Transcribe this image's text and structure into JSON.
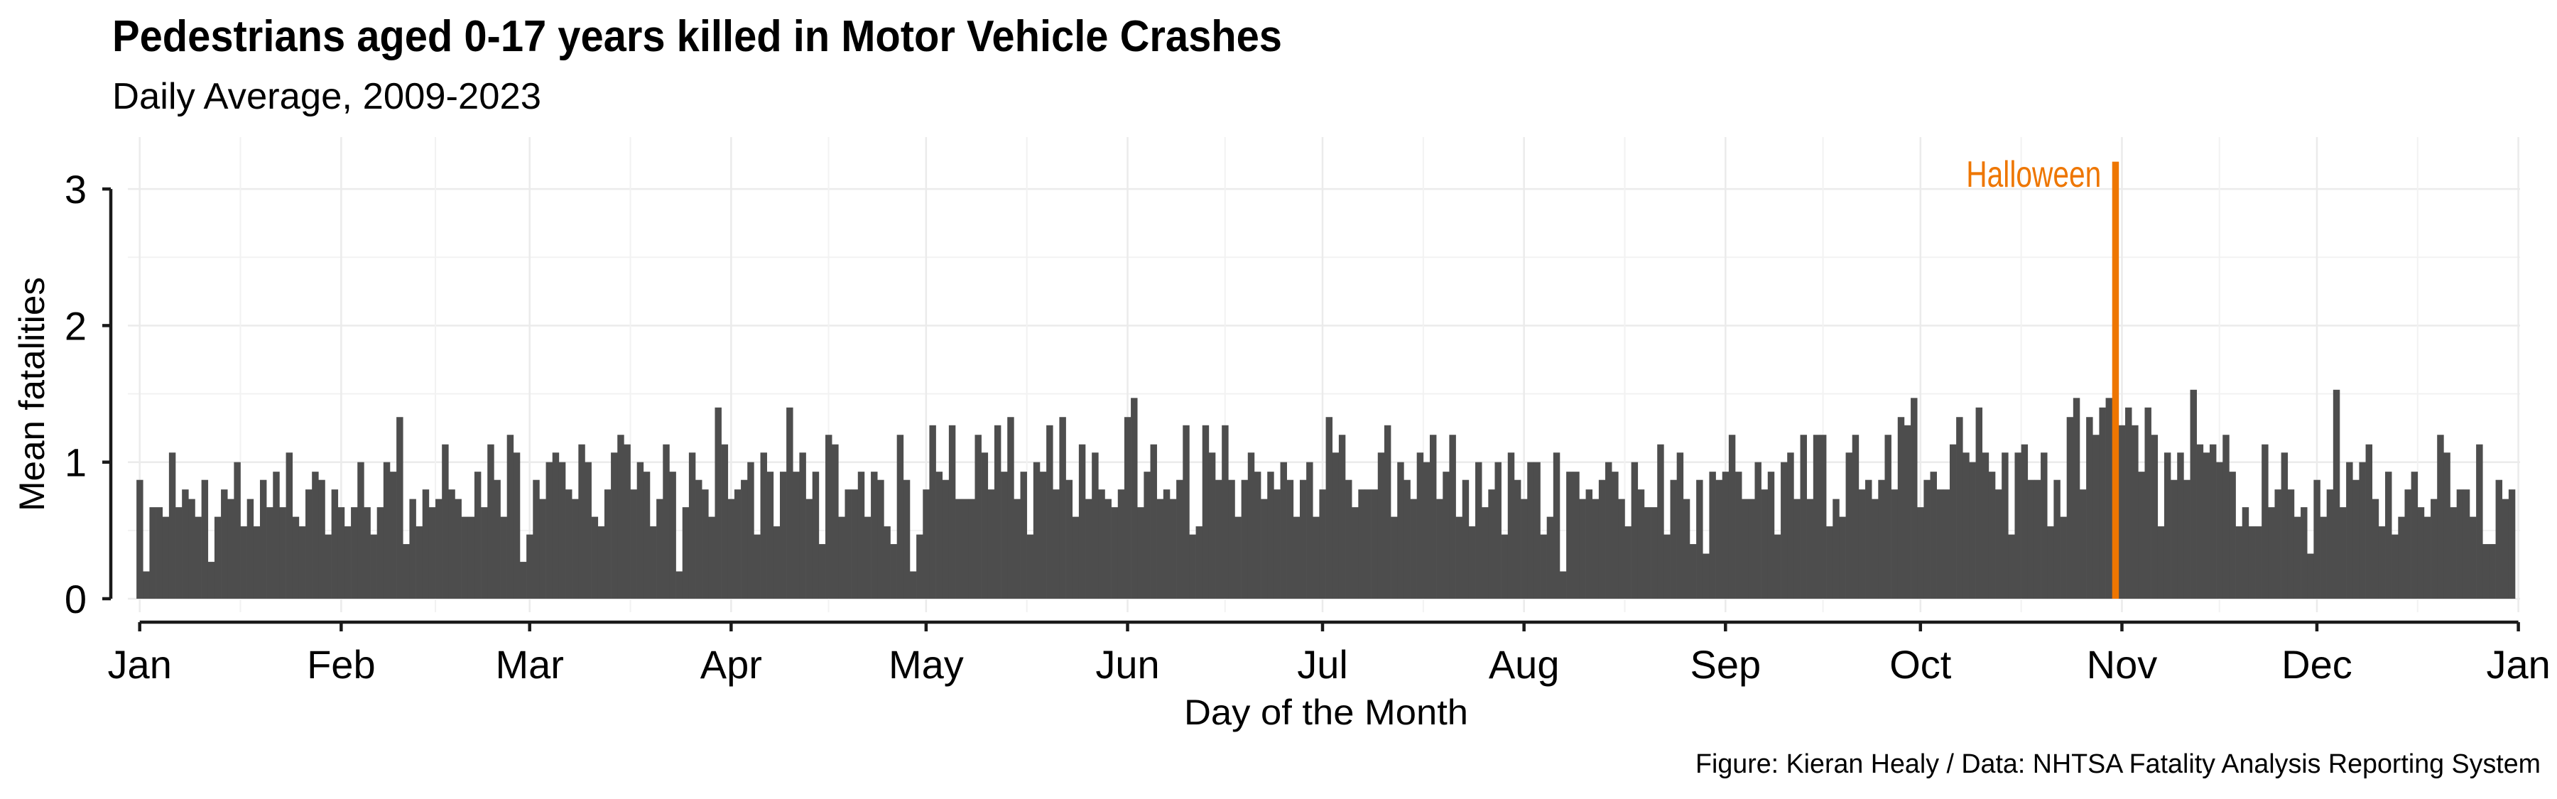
{
  "chart_data": {
    "type": "bar",
    "title": "Pedestrians aged 0-17 years killed in Motor Vehicle Crashes",
    "subtitle": "Daily Average, 2009-2023",
    "xlabel": "Day of the Month",
    "ylabel": "Mean fatalities",
    "caption": "Figure: Kieran Healy / Data: NHTSA Fatality Analysis Reporting System",
    "ylim": [
      0,
      3.2
    ],
    "xlim_days": [
      1,
      367
    ],
    "grid": true,
    "bar_color": "#4d4d4d",
    "y_ticks": [
      {
        "value": 0,
        "label": "0"
      },
      {
        "value": 1,
        "label": "1"
      },
      {
        "value": 2,
        "label": "2"
      },
      {
        "value": 3,
        "label": "3"
      }
    ],
    "x_ticks": [
      {
        "day": 1,
        "label": "Jan"
      },
      {
        "day": 32,
        "label": "Feb"
      },
      {
        "day": 61,
        "label": "Mar"
      },
      {
        "day": 92,
        "label": "Apr"
      },
      {
        "day": 122,
        "label": "May"
      },
      {
        "day": 153,
        "label": "Jun"
      },
      {
        "day": 183,
        "label": "Jul"
      },
      {
        "day": 214,
        "label": "Aug"
      },
      {
        "day": 245,
        "label": "Sep"
      },
      {
        "day": 275,
        "label": "Oct"
      },
      {
        "day": 306,
        "label": "Nov"
      },
      {
        "day": 336,
        "label": "Dec"
      },
      {
        "day": 367,
        "label": "Jan"
      }
    ],
    "highlight": {
      "day": 305,
      "label": "Halloween",
      "color": "#ee7600"
    },
    "values": [
      0.87,
      0.2,
      0.67,
      0.67,
      0.6,
      1.07,
      0.67,
      0.8,
      0.73,
      0.6,
      0.87,
      0.27,
      0.6,
      0.8,
      0.73,
      1,
      0.53,
      0.73,
      0.53,
      0.87,
      0.67,
      0.93,
      0.67,
      1.07,
      0.6,
      0.53,
      0.8,
      0.93,
      0.87,
      0.47,
      0.8,
      0.67,
      0.53,
      0.67,
      1,
      0.67,
      0.47,
      0.67,
      1,
      0.93,
      1.33,
      0.4,
      0.73,
      0.53,
      0.8,
      0.67,
      0.73,
      1.13,
      0.8,
      0.73,
      0.6,
      0.6,
      0.93,
      0.67,
      1.13,
      0.87,
      0.6,
      1.2,
      1.07,
      0.27,
      0.47,
      0.87,
      0.73,
      1,
      1.07,
      1,
      0.8,
      0.73,
      1.13,
      1,
      0.6,
      0.53,
      0.8,
      1.07,
      1.2,
      1.13,
      0.8,
      1,
      0.93,
      0.53,
      0.73,
      1.13,
      0.93,
      0.2,
      0.67,
      1.07,
      0.87,
      0.8,
      0.6,
      1.4,
      1.13,
      0.73,
      0.8,
      0.87,
      1,
      0.47,
      1.07,
      0.93,
      0.53,
      0.93,
      1.4,
      0.93,
      1.07,
      0.73,
      0.93,
      0.4,
      1.2,
      1.13,
      0.6,
      0.8,
      0.8,
      0.93,
      0.6,
      0.93,
      0.87,
      0.53,
      0.4,
      1.2,
      0.87,
      0.2,
      0.47,
      0.8,
      1.27,
      0.93,
      0.87,
      1.27,
      0.73,
      0.73,
      0.73,
      1.2,
      1.07,
      0.8,
      1.27,
      0.93,
      1.33,
      0.73,
      0.93,
      0.47,
      1,
      0.93,
      1.27,
      0.8,
      1.33,
      0.87,
      0.6,
      1.13,
      0.73,
      1.07,
      0.8,
      0.73,
      0.67,
      0.8,
      1.33,
      1.47,
      0.67,
      0.93,
      1.13,
      0.73,
      0.8,
      0.73,
      0.87,
      1.27,
      0.47,
      0.53,
      1.27,
      1.07,
      0.87,
      1.27,
      0.87,
      0.6,
      0.87,
      1.07,
      0.93,
      0.73,
      0.93,
      0.8,
      1,
      0.87,
      0.6,
      0.87,
      1,
      0.6,
      0.8,
      1.33,
      1.07,
      1.2,
      0.87,
      0.67,
      0.8,
      0.8,
      0.8,
      1.07,
      1.27,
      0.6,
      1,
      0.87,
      0.73,
      1.07,
      1,
      1.2,
      0.73,
      0.93,
      1.2,
      0.6,
      0.87,
      0.53,
      1,
      0.67,
      0.8,
      1,
      0.47,
      1.07,
      0.87,
      0.73,
      1,
      1,
      0.47,
      0.6,
      1.07,
      0.2,
      0.93,
      0.93,
      0.73,
      0.8,
      0.73,
      0.87,
      1,
      0.93,
      0.73,
      0.53,
      1,
      0.8,
      0.67,
      0.67,
      1.13,
      0.47,
      0.87,
      1.07,
      0.73,
      0.4,
      0.87,
      0.33,
      0.93,
      0.87,
      0.93,
      1.2,
      0.93,
      0.73,
      0.73,
      1,
      0.8,
      0.93,
      0.47,
      1,
      1.07,
      0.73,
      1.2,
      0.73,
      1.2,
      1.2,
      0.53,
      0.73,
      0.6,
      1.07,
      1.2,
      0.8,
      0.87,
      0.73,
      0.87,
      1.2,
      0.8,
      1.33,
      1.27,
      1.47,
      0.67,
      0.87,
      0.93,
      0.8,
      0.8,
      1.13,
      1.33,
      1.07,
      1,
      1.4,
      1.07,
      0.93,
      0.8,
      1.07,
      0.47,
      1.07,
      1.13,
      0.87,
      0.87,
      1.07,
      0.53,
      0.87,
      0.6,
      1.33,
      1.47,
      0.8,
      1.33,
      1.2,
      1.4,
      1.47,
      3.2,
      1.27,
      1.4,
      1.27,
      0.93,
      1.4,
      1.2,
      0.53,
      1.07,
      0.87,
      1.07,
      0.87,
      1.53,
      1.13,
      1.07,
      1.13,
      1,
      1.2,
      0.93,
      0.53,
      0.67,
      0.53,
      0.53,
      1.13,
      0.67,
      0.8,
      1.07,
      0.8,
      0.6,
      0.67,
      0.33,
      0.87,
      0.6,
      0.8,
      1.53,
      0.67,
      1,
      0.87,
      1,
      1.13,
      0.73,
      0.53,
      0.93,
      0.47,
      0.6,
      0.8,
      0.93,
      0.67,
      0.6,
      0.73,
      1.2,
      1.07,
      0.67,
      0.8,
      0.8,
      0.6,
      1.13,
      0.4,
      0.4,
      0.87,
      0.73,
      0.8
    ]
  }
}
